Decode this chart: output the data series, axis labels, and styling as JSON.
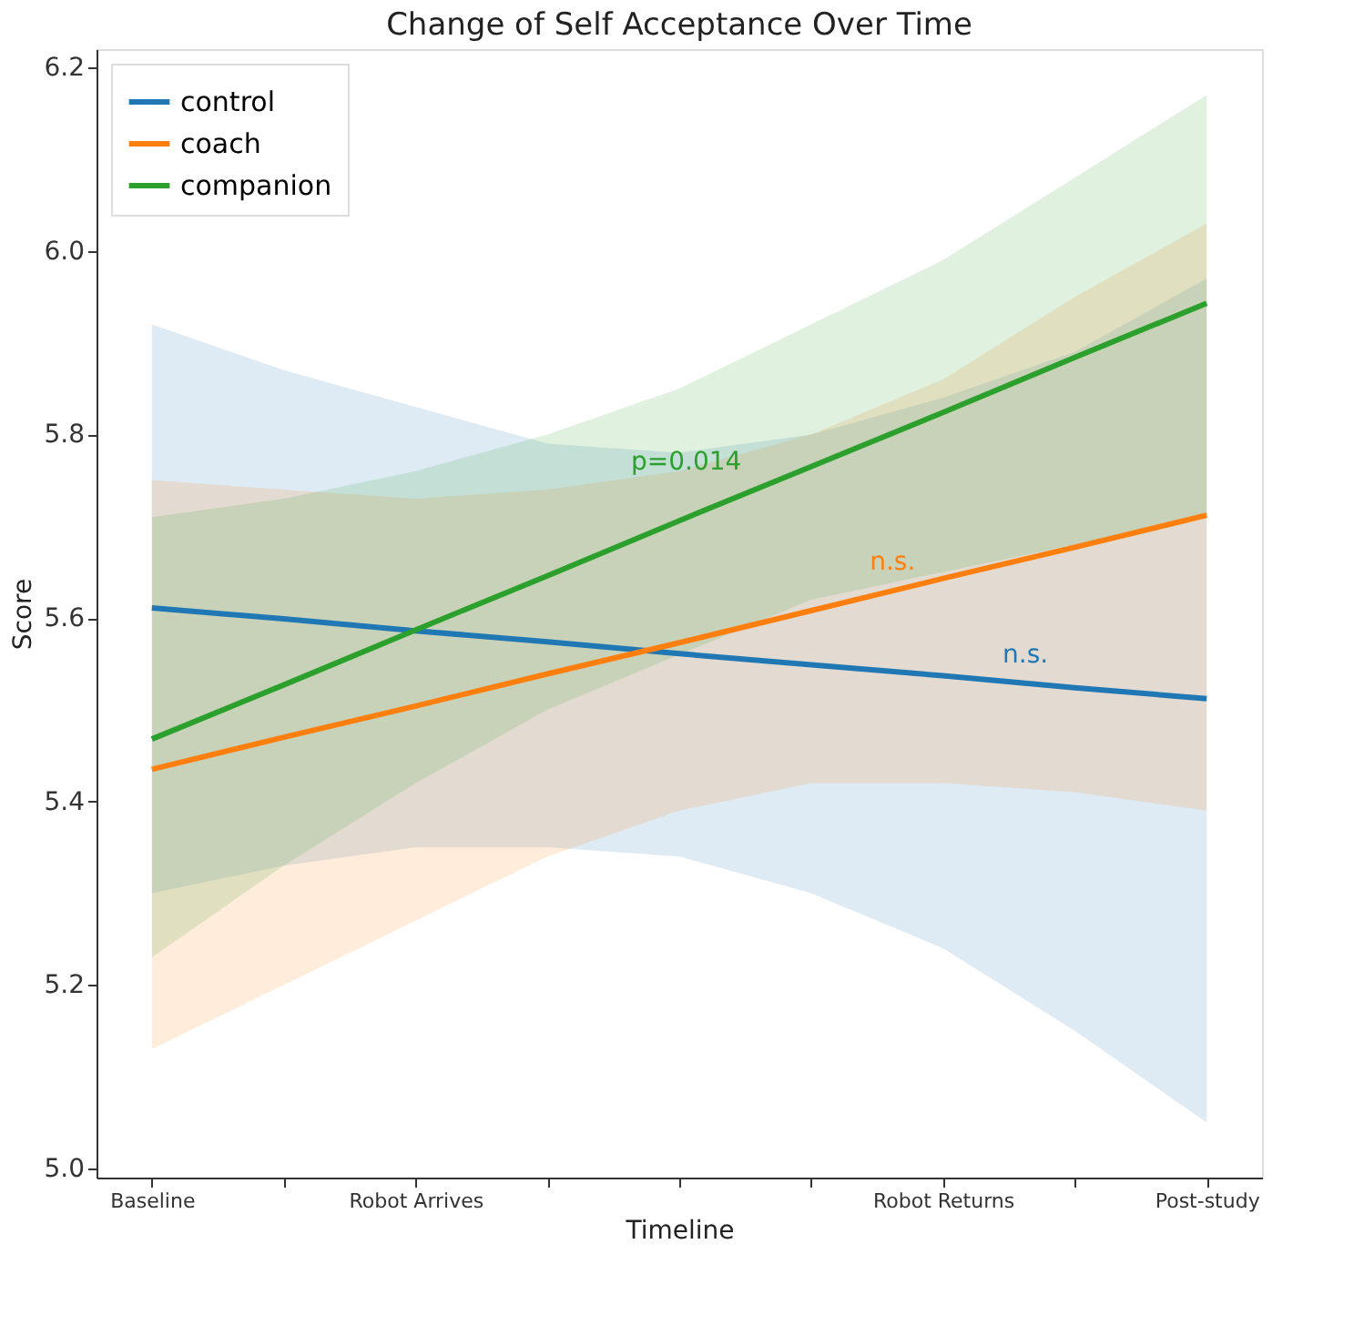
{
  "chart_data": {
    "type": "line",
    "title": "Change of Self Acceptance Over Time",
    "xlabel": "Timeline",
    "ylabel": "Score",
    "categories": [
      "Baseline",
      null,
      "Robot Arrives",
      null,
      null,
      null,
      "Robot Returns",
      null,
      "Post-study"
    ],
    "ylim": [
      4.99,
      6.22
    ],
    "yticks": [
      {
        "value": 5.0,
        "label": "5.0"
      },
      {
        "value": 5.2,
        "label": "5.2"
      },
      {
        "value": 5.4,
        "label": "5.4"
      },
      {
        "value": 5.6,
        "label": "5.6"
      },
      {
        "value": 5.8,
        "label": "5.8"
      },
      {
        "value": 6.0,
        "label": "6.0"
      },
      {
        "value": 6.2,
        "label": "6.2"
      }
    ],
    "series": [
      {
        "name": "control",
        "color": "#1f77b4",
        "values": [
          5.611,
          5.599,
          5.586,
          5.574,
          5.561,
          5.549,
          5.537,
          5.524,
          5.512
        ],
        "lower": [
          5.3,
          5.33,
          5.35,
          5.35,
          5.34,
          5.3,
          5.24,
          5.15,
          5.05
        ],
        "upper": [
          5.92,
          5.87,
          5.83,
          5.79,
          5.78,
          5.8,
          5.84,
          5.89,
          5.97
        ]
      },
      {
        "name": "coach",
        "color": "#ff7f0e",
        "values": [
          5.435,
          5.47,
          5.504,
          5.539,
          5.573,
          5.608,
          5.643,
          5.677,
          5.712
        ],
        "lower": [
          5.13,
          5.2,
          5.27,
          5.34,
          5.39,
          5.42,
          5.42,
          5.41,
          5.39
        ],
        "upper": [
          5.75,
          5.74,
          5.73,
          5.74,
          5.76,
          5.8,
          5.86,
          5.95,
          6.03
        ]
      },
      {
        "name": "companion",
        "color": "#2ca02c",
        "values": [
          5.468,
          5.527,
          5.587,
          5.646,
          5.706,
          5.765,
          5.824,
          5.884,
          5.943
        ],
        "lower": [
          5.23,
          5.33,
          5.42,
          5.5,
          5.56,
          5.62,
          5.65,
          5.68,
          5.71
        ],
        "upper": [
          5.71,
          5.73,
          5.76,
          5.8,
          5.85,
          5.92,
          5.99,
          6.08,
          6.17
        ]
      }
    ],
    "annotations": [
      "p=0.014",
      "n.s.",
      "n.s."
    ],
    "legend": "top left",
    "grid": false,
    "marker": "none",
    "line_style": "solid"
  }
}
